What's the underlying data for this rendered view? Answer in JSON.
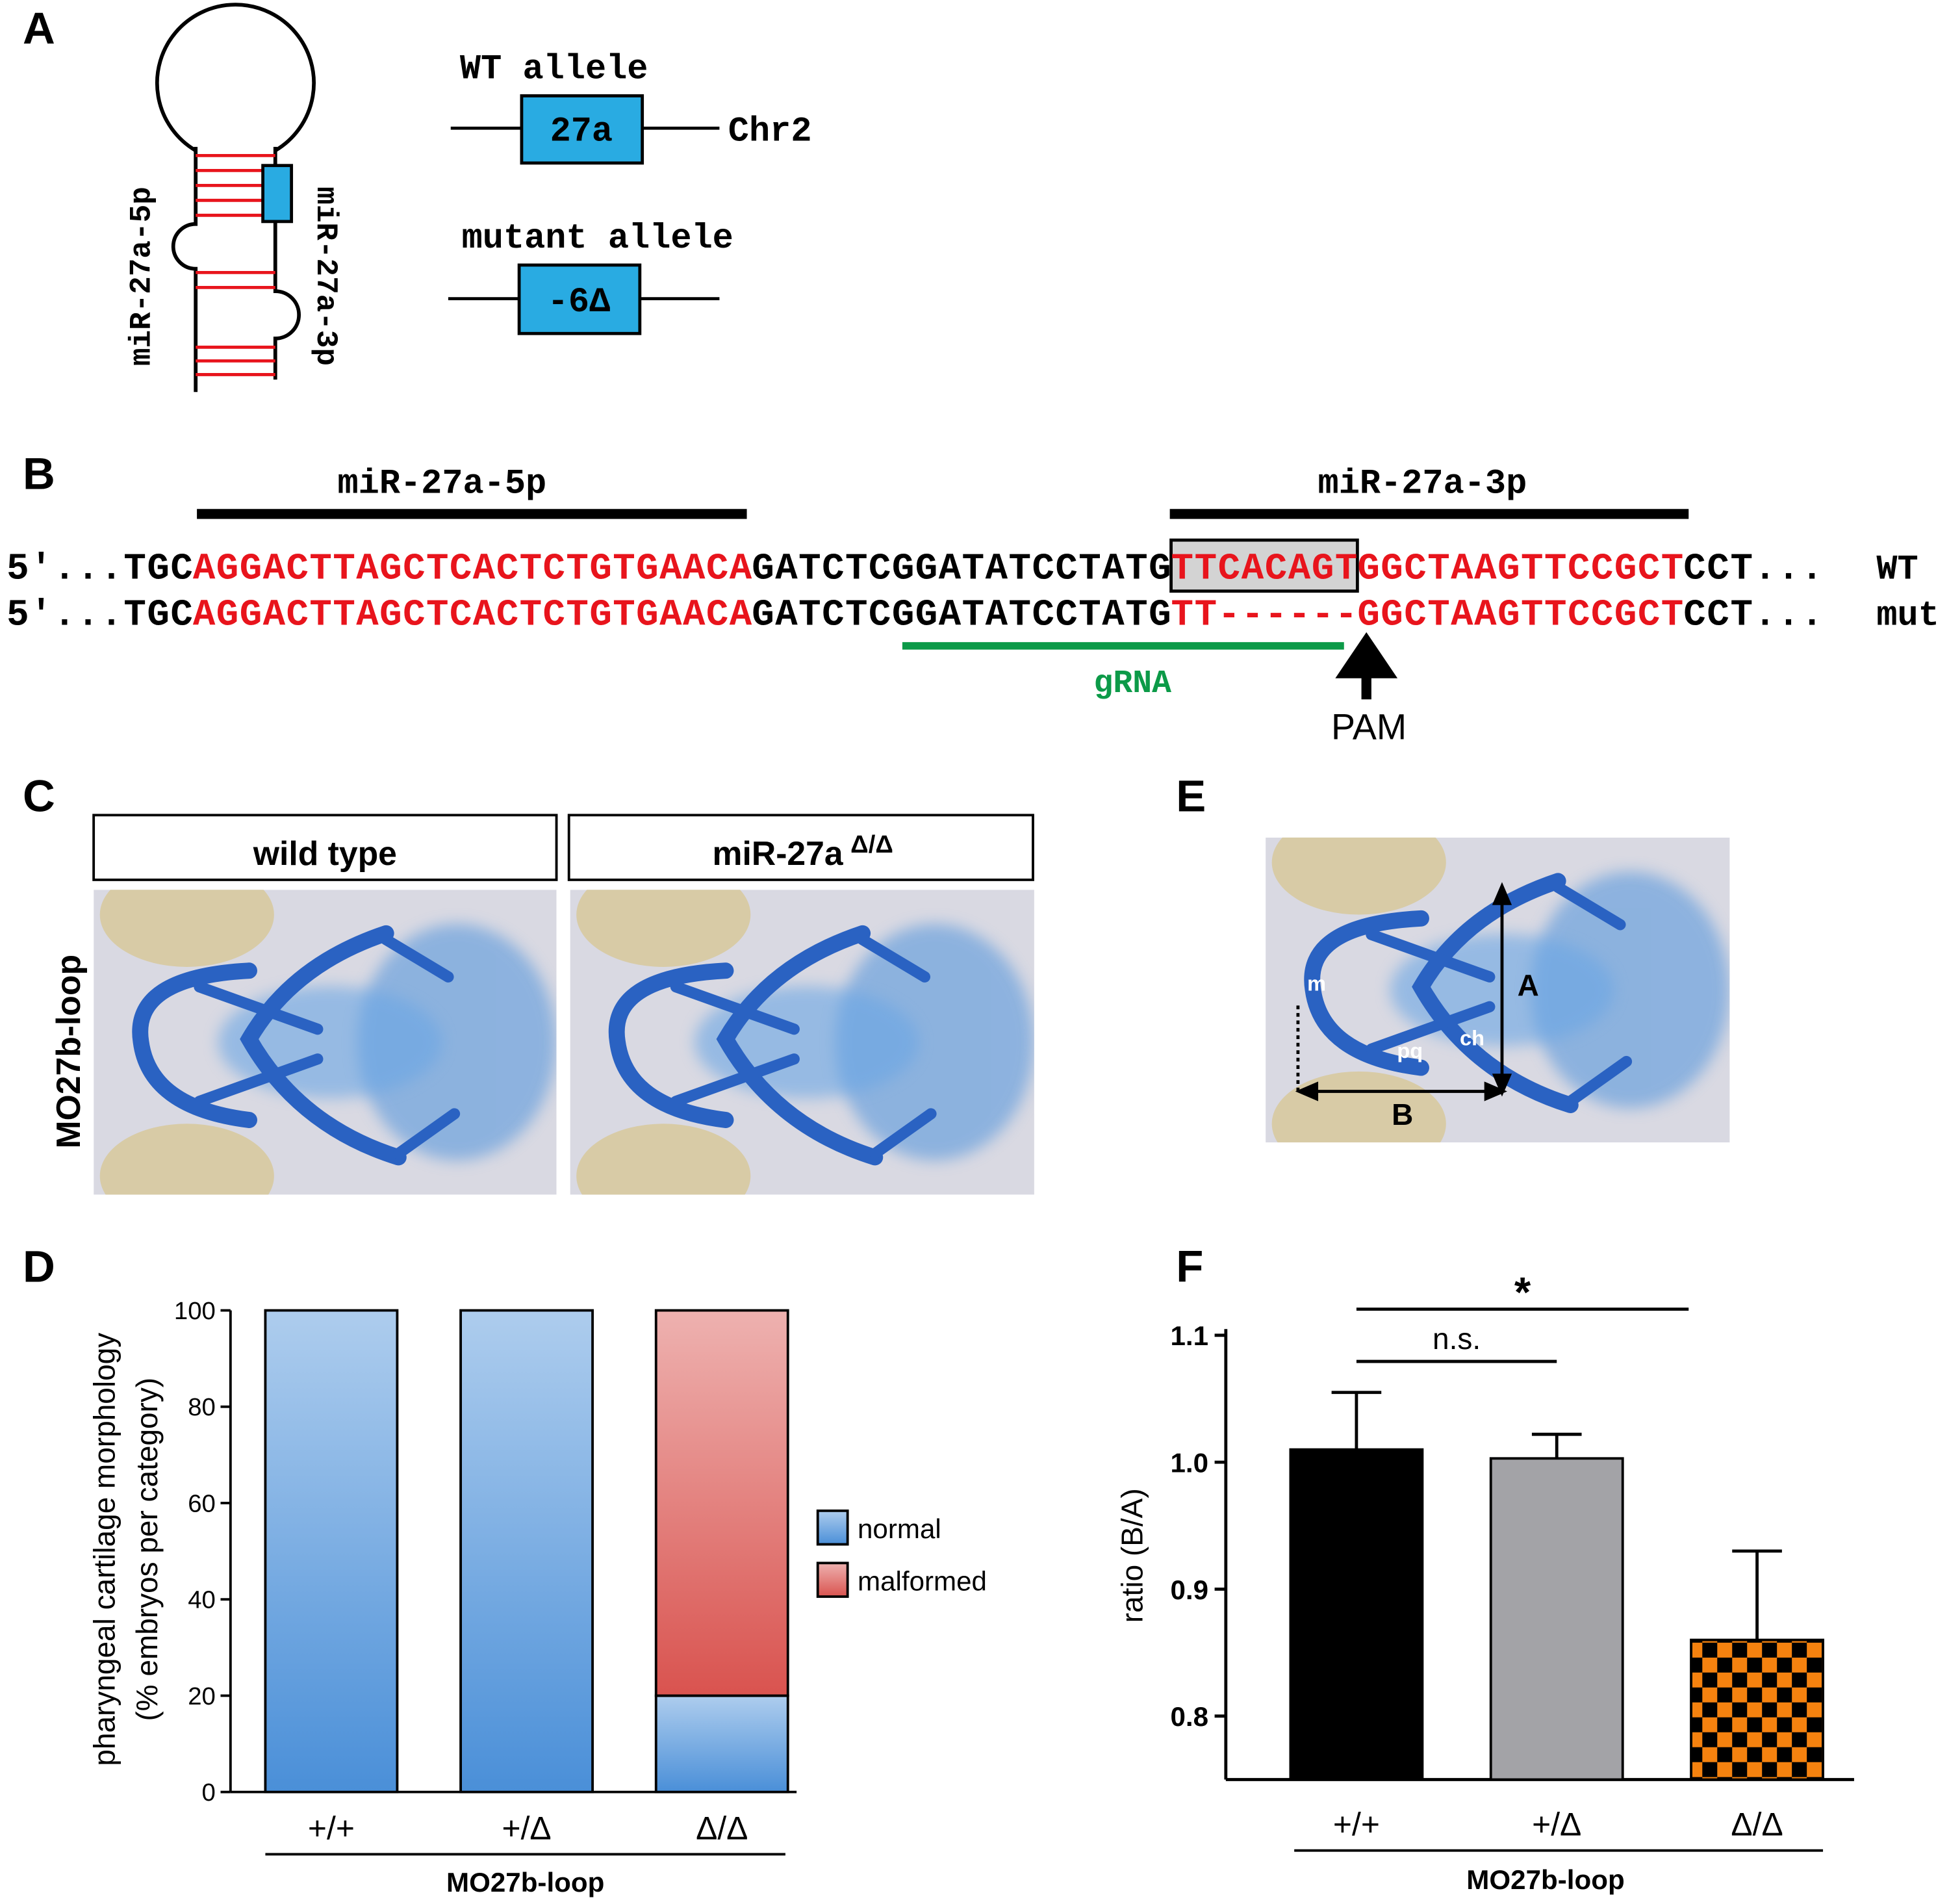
{
  "figure": {
    "panel_labels": [
      "A",
      "B",
      "C",
      "D",
      "E",
      "F"
    ],
    "hairpin": {
      "arm_5p": "miR-27a-5p",
      "arm_3p": "miR-27a-3p"
    },
    "alleles": {
      "wt_title": "WT allele",
      "wt_box": "27a",
      "chromosome": "Chr2",
      "mutant_title": "mutant allele",
      "mutant_box": "-6Δ"
    },
    "sequence": {
      "labels": [
        "miR-27a-5p",
        "miR-27a-3p"
      ],
      "rows": [
        {
          "name": "WT",
          "segments": [
            {
              "text": "5′...TGC",
              "color": "#000000"
            },
            {
              "text": "AGGACTTAGCTCACTCTGTGAACA",
              "color": "#e8141c"
            },
            {
              "text": "GATCTCGGATATCCTATG",
              "color": "#000000"
            },
            {
              "text": "TTCACAGT",
              "color": "#e8141c",
              "boxed": true
            },
            {
              "text": "GGCTAAGTTCCGCT",
              "color": "#e8141c"
            },
            {
              "text": "CCT...",
              "color": "#000000"
            }
          ]
        },
        {
          "name": "mut",
          "segments": [
            {
              "text": "5′...TGC",
              "color": "#000000"
            },
            {
              "text": "AGGACTTAGCTCACTCTGTGAACA",
              "color": "#e8141c"
            },
            {
              "text": "GATCTCGGATATCCTATG",
              "color": "#000000"
            },
            {
              "text": "TT------",
              "color": "#e8141c"
            },
            {
              "text": "GGCTAAGTTCCGCT",
              "color": "#e8141c"
            },
            {
              "text": "CCT...",
              "color": "#000000"
            }
          ]
        }
      ],
      "guide": "gRNA",
      "pam": "PAM"
    },
    "images": {
      "wt_title": "wild type",
      "mutant_title": "miR-27a",
      "mutant_sup": "Δ/Δ",
      "row_label": "MO27b-loop"
    },
    "measure": {
      "labels": [
        "m",
        "pq",
        "ch",
        "A",
        "B"
      ]
    }
  },
  "chart_data": [
    {
      "type": "stacked_bar",
      "categories": [
        "+/+",
        "+/Δ",
        "Δ/Δ"
      ],
      "series": [
        {
          "name": "normal",
          "color": "#4a8fd8",
          "values": [
            100,
            100,
            20
          ]
        },
        {
          "name": "malformed",
          "color": "#d9534f",
          "values": [
            0,
            0,
            80
          ]
        }
      ],
      "ylabel": [
        "pharyngeal cartilage morphology",
        "(% embryos per category)"
      ],
      "group_label": "MO27b-loop",
      "ylim": [
        0,
        100
      ],
      "yticks": [
        0,
        20,
        40,
        60,
        80,
        100
      ]
    },
    {
      "type": "bar",
      "categories": [
        "+/+",
        "+/Δ",
        "Δ/Δ"
      ],
      "values": [
        1.01,
        1.003,
        0.86
      ],
      "errors": [
        0.045,
        0.019,
        0.07
      ],
      "colors": [
        "#000000",
        "#a3a3a7",
        "#f5820f"
      ],
      "checker": [
        false,
        false,
        true
      ],
      "ylabel": "ratio (B/A)",
      "group_label": "MO27b-loop",
      "ylim": [
        0.75,
        1.1
      ],
      "yticks": [
        0.8,
        0.9,
        {
          "value": 1,
          "label": "1.0"
        },
        1.1
      ],
      "annotations": [
        {
          "text": "n.s.",
          "from": 0,
          "to": 1
        },
        {
          "text": "*",
          "from": 0,
          "to": 2
        }
      ]
    }
  ]
}
